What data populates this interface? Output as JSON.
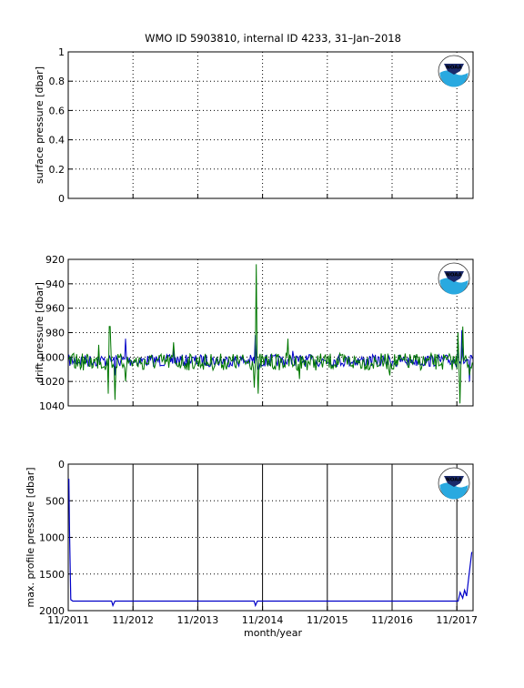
{
  "title": "WMO ID 5903810, internal ID 4233, 31–Jan–2018",
  "xlabel": "month/year",
  "x_tick_labels": [
    "11/2011",
    "11/2012",
    "11/2013",
    "11/2014",
    "11/2015",
    "11/2016",
    "11/2017"
  ],
  "logo_text": "NOAA",
  "colors": {
    "blue": "#0000c8",
    "green": "#007700",
    "axis": "#000000",
    "grid": "#000000"
  },
  "chart_data": [
    {
      "type": "line",
      "ylabel": "surface pressure [dbar]",
      "ylim": [
        0,
        1
      ],
      "y_ticks": [
        "0",
        "0.2",
        "0.4",
        "0.6",
        "0.8",
        "1"
      ],
      "x_range_years": [
        2011.83,
        2018.08
      ],
      "grid": true,
      "series": []
    },
    {
      "type": "line",
      "ylabel": "drift pressure [dbar]",
      "ylim": [
        920,
        1040
      ],
      "y_reversed": true,
      "y_ticks": [
        "920",
        "940",
        "960",
        "980",
        "1000",
        "1020",
        "1040"
      ],
      "x_range_years": [
        2011.83,
        2018.08
      ],
      "grid": true,
      "series": [
        {
          "color": "blue",
          "baseline": 1003,
          "spikes": [
            [
              2012.3,
              1000
            ],
            [
              2012.55,
              1015
            ],
            [
              2012.72,
              985
            ],
            [
              2013.45,
              992
            ],
            [
              2014.72,
              982
            ],
            [
              2014.77,
              1010
            ],
            [
              2015.3,
              995
            ],
            [
              2016.9,
              1008
            ],
            [
              2017.85,
              985
            ],
            [
              2017.9,
              978
            ],
            [
              2018.02,
              1020
            ]
          ]
        },
        {
          "color": "green",
          "baseline": 1004,
          "spikes": [
            [
              2012.3,
              990
            ],
            [
              2012.45,
              1030
            ],
            [
              2012.47,
              975
            ],
            [
              2012.55,
              1035
            ],
            [
              2012.72,
              1020
            ],
            [
              2013.0,
              1010
            ],
            [
              2013.45,
              988
            ],
            [
              2014.7,
              1025
            ],
            [
              2014.73,
              924
            ],
            [
              2014.76,
              1030
            ],
            [
              2015.22,
              985
            ],
            [
              2015.4,
              1018
            ],
            [
              2016.8,
              1015
            ],
            [
              2017.85,
              980
            ],
            [
              2017.88,
              1038
            ],
            [
              2017.92,
              975
            ],
            [
              2018.03,
              1015
            ]
          ]
        }
      ]
    },
    {
      "type": "line",
      "ylabel": "max. profile pressure [dbar]",
      "ylim": [
        0,
        2000
      ],
      "y_reversed": true,
      "y_ticks": [
        "0",
        "500",
        "1000",
        "1500",
        "2000"
      ],
      "x_range_years": [
        2011.83,
        2018.08
      ],
      "grid": true,
      "series": [
        {
          "color": "blue",
          "points": [
            [
              2011.84,
              200
            ],
            [
              2011.85,
              900
            ],
            [
              2011.87,
              1850
            ],
            [
              2011.9,
              1870
            ],
            [
              2012.5,
              1870
            ],
            [
              2012.52,
              1930
            ],
            [
              2012.55,
              1870
            ],
            [
              2014.7,
              1870
            ],
            [
              2014.72,
              1930
            ],
            [
              2014.75,
              1870
            ],
            [
              2017.85,
              1870
            ],
            [
              2017.88,
              1750
            ],
            [
              2017.92,
              1830
            ],
            [
              2017.95,
              1720
            ],
            [
              2017.98,
              1800
            ],
            [
              2018.02,
              1500
            ],
            [
              2018.06,
              1200
            ]
          ]
        }
      ]
    }
  ]
}
